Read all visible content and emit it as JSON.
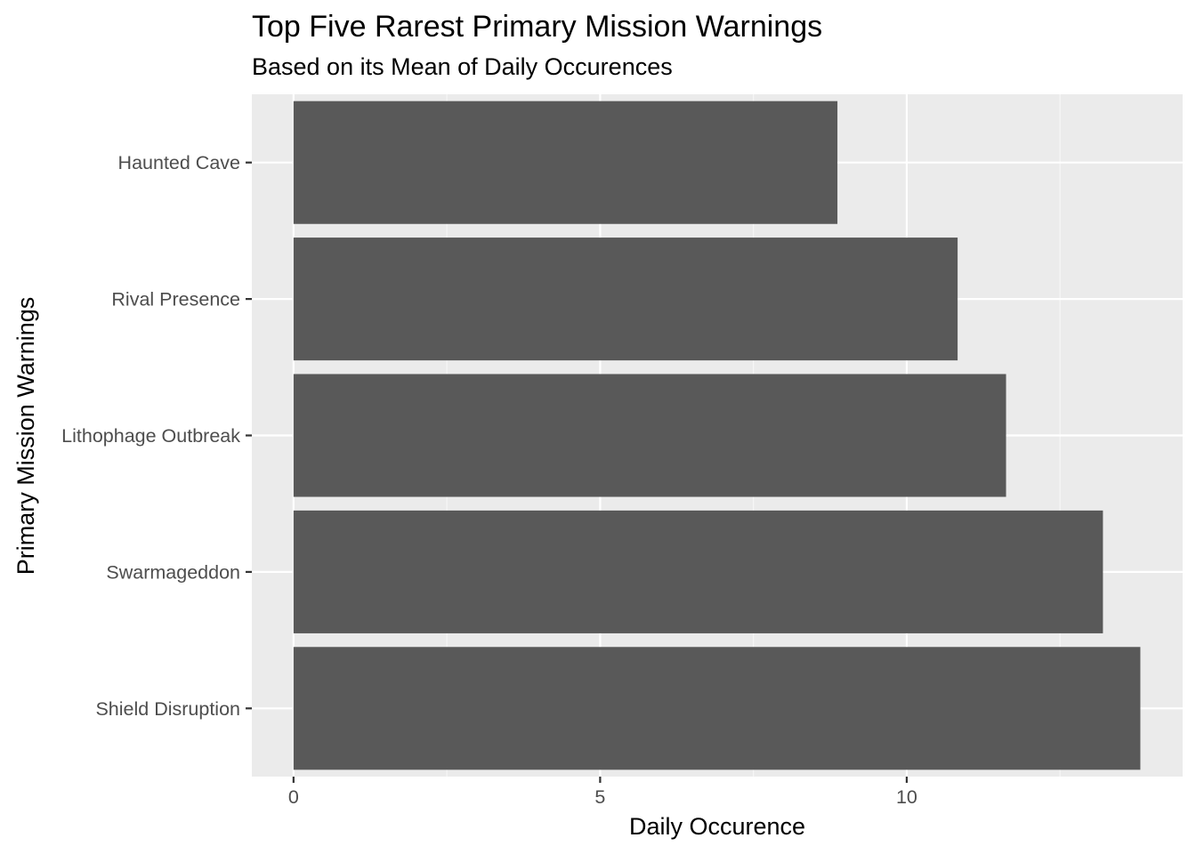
{
  "chart_data": {
    "type": "bar",
    "orientation": "horizontal",
    "title": "Top Five Rarest Primary Mission Warnings",
    "subtitle": "Based on its Mean of Daily Occurences",
    "xlabel": "Daily Occurence",
    "ylabel": "Primary Mission Warnings",
    "categories": [
      "Haunted Cave",
      "Rival Presence",
      "Lithophage Outbreak",
      "Swarmageddon",
      "Shield Disruption"
    ],
    "values": [
      8.87,
      10.83,
      11.62,
      13.2,
      13.81
    ],
    "xlim": [
      -0.68,
      14.5
    ],
    "xticks": [
      0,
      5,
      10
    ],
    "grid": true,
    "legend": "none",
    "colors": {
      "bar": "#595959",
      "panel": "#ebebeb",
      "grid_major": "#ffffff",
      "grid_minor": "#f7f7f7",
      "tick": "#333333"
    }
  }
}
